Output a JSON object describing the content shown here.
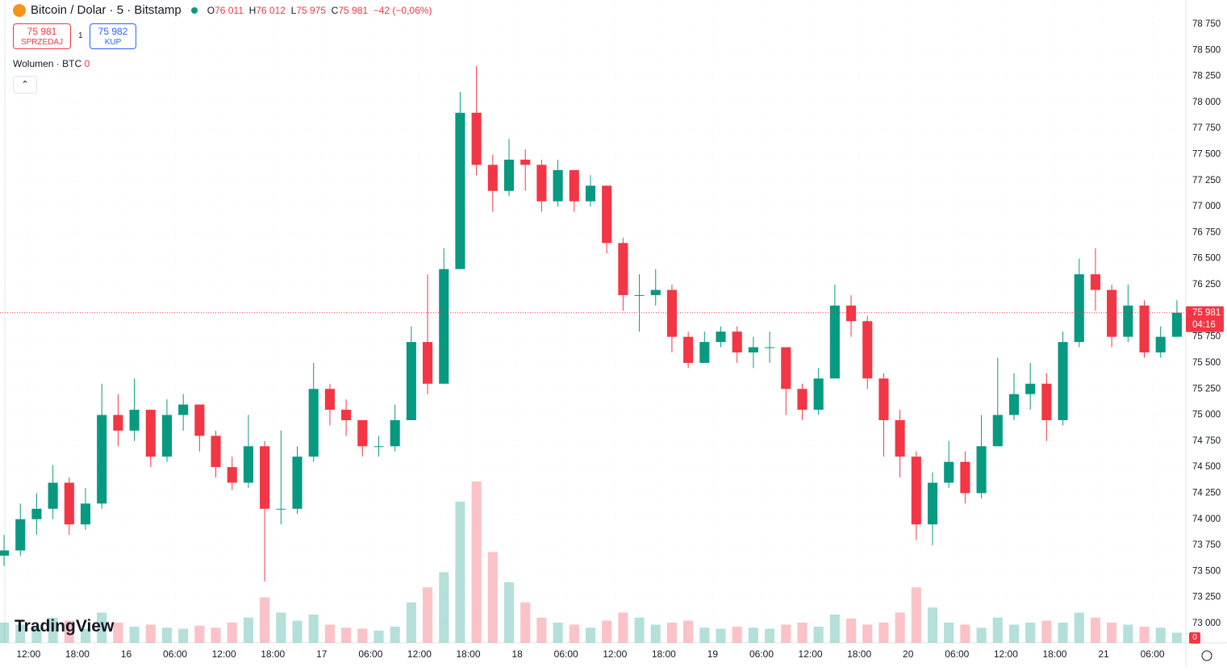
{
  "header": {
    "symbol": "Bitcoin / Dolar · 5 · Bitstamp",
    "ohlc": [
      {
        "label": "O",
        "value": "76 011"
      },
      {
        "label": "H",
        "value": "76 012"
      },
      {
        "label": "L",
        "value": "75 975"
      },
      {
        "label": "C",
        "value": "75 981"
      }
    ],
    "change": "−42 (−0,06%)",
    "sell": {
      "price": "75 981",
      "label": "SPRZEDAJ"
    },
    "spread": "1",
    "buy": {
      "price": "75 982",
      "label": "KUP"
    },
    "volume_label": "Wolumen · BTC",
    "volume_value": "0",
    "logo": "TradingView",
    "badge": "0"
  },
  "chart_data": {
    "type": "candlestick",
    "up_color": "#089981",
    "down_color": "#f23645",
    "x": [
      9,
      11,
      13,
      15,
      17,
      19,
      21,
      23,
      25,
      27,
      29,
      31,
      33,
      35,
      37,
      39,
      41,
      43,
      45,
      47,
      49,
      51,
      53,
      55,
      57,
      59,
      61,
      63,
      65,
      67,
      69,
      71,
      73,
      75,
      77,
      79,
      81,
      83,
      85,
      87,
      89,
      91,
      93,
      95,
      97,
      99,
      101,
      103,
      105,
      107,
      109,
      111,
      113,
      115,
      117,
      119,
      121,
      123,
      125,
      127,
      129,
      131,
      133,
      135,
      137,
      139,
      141,
      143,
      145,
      147,
      149,
      151,
      153
    ],
    "open": [
      73650,
      73700,
      74000,
      74100,
      74350,
      73950,
      74150,
      75000,
      74850,
      75050,
      74600,
      75000,
      75100,
      74800,
      74500,
      74350,
      74700,
      74100,
      74100,
      74600,
      75250,
      75050,
      74950,
      74700,
      74700,
      74950,
      75700,
      75300,
      76400,
      77900,
      77400,
      77150,
      77450,
      77400,
      77050,
      77350,
      77050,
      77200,
      76650,
      76150,
      76150,
      76200,
      75750,
      75500,
      75700,
      75800,
      75600,
      75650,
      75650,
      75250,
      75050,
      75350,
      76050,
      75900,
      75350,
      74950,
      74600,
      73950,
      74350,
      74550,
      74250,
      74700,
      75000,
      75200,
      75300,
      74950,
      75700,
      76350,
      76200,
      75750,
      76050,
      75600,
      75750
    ],
    "high": [
      73850,
      74150,
      74250,
      74520,
      74400,
      74300,
      75300,
      75200,
      75350,
      75050,
      75150,
      75200,
      75100,
      74850,
      74600,
      75000,
      74750,
      74850,
      74700,
      75500,
      75300,
      75150,
      74950,
      74800,
      75100,
      75850,
      76350,
      76600,
      78100,
      78350,
      77500,
      77650,
      77550,
      77450,
      77450,
      77350,
      77300,
      77200,
      76700,
      76350,
      76400,
      76250,
      75800,
      75800,
      75850,
      75850,
      75750,
      75800,
      75650,
      75300,
      75450,
      76250,
      76150,
      75950,
      75400,
      75050,
      74650,
      74450,
      74750,
      74650,
      75000,
      75550,
      75400,
      75500,
      75400,
      75800,
      76500,
      76600,
      76250,
      76250,
      76100,
      75850,
      76100
    ],
    "low": [
      73550,
      73650,
      73850,
      74000,
      73850,
      73900,
      74100,
      74700,
      74750,
      74500,
      74550,
      74850,
      74650,
      74400,
      74280,
      74300,
      73400,
      73950,
      74050,
      74550,
      74900,
      74800,
      74600,
      74600,
      74650,
      74950,
      75200,
      75300,
      76400,
      77300,
      76950,
      77100,
      77150,
      76950,
      77000,
      76950,
      77000,
      76550,
      76000,
      75800,
      76050,
      75600,
      75450,
      75550,
      75650,
      75500,
      75450,
      75500,
      75000,
      74950,
      75000,
      75400,
      75750,
      75250,
      74600,
      74400,
      73800,
      73750,
      74300,
      74150,
      74200,
      74700,
      74950,
      75050,
      74750,
      74900,
      75650,
      76000,
      75650,
      75700,
      75550,
      75550,
      75750
    ],
    "close": [
      73700,
      74000,
      74100,
      74350,
      73950,
      74150,
      75000,
      74850,
      75050,
      74600,
      75000,
      75100,
      74800,
      74500,
      74350,
      74700,
      74100,
      74100,
      74600,
      75250,
      75050,
      74950,
      74700,
      74700,
      74950,
      75700,
      75300,
      76400,
      77900,
      77400,
      77150,
      77450,
      77400,
      77050,
      77350,
      77050,
      77200,
      76650,
      76150,
      76150,
      76200,
      75750,
      75500,
      75700,
      75800,
      75600,
      75650,
      75650,
      75250,
      75050,
      75350,
      76050,
      75900,
      75350,
      74950,
      74600,
      73950,
      74350,
      74550,
      74250,
      74700,
      75000,
      75200,
      75300,
      74950,
      75700,
      76350,
      76200,
      75750,
      76050,
      75600,
      75750,
      75981
    ],
    "volume": [
      20,
      18,
      15,
      25,
      22,
      14,
      30,
      20,
      16,
      18,
      15,
      14,
      17,
      15,
      20,
      25,
      45,
      30,
      22,
      28,
      18,
      15,
      14,
      12,
      16,
      40,
      55,
      70,
      140,
      160,
      90,
      60,
      40,
      25,
      20,
      18,
      15,
      22,
      30,
      25,
      18,
      20,
      22,
      15,
      14,
      16,
      15,
      14,
      18,
      20,
      16,
      28,
      24,
      18,
      20,
      30,
      55,
      35,
      20,
      18,
      15,
      25,
      18,
      20,
      22,
      20,
      30,
      25,
      20,
      18,
      16,
      15,
      10
    ],
    "xlim": [
      8.5,
      154.1
    ],
    "ylim": [
      72814,
      78982
    ],
    "xticks": [
      {
        "value": 12,
        "label": "12:00"
      },
      {
        "value": 18,
        "label": "18:00"
      },
      {
        "value": 24,
        "label": "16"
      },
      {
        "value": 30,
        "label": "06:00"
      },
      {
        "value": 36,
        "label": "12:00"
      },
      {
        "value": 42,
        "label": "18:00"
      },
      {
        "value": 48,
        "label": "17"
      },
      {
        "value": 54,
        "label": "06:00"
      },
      {
        "value": 60,
        "label": "12:00"
      },
      {
        "value": 66,
        "label": "18:00"
      },
      {
        "value": 72,
        "label": "18"
      },
      {
        "value": 78,
        "label": "06:00"
      },
      {
        "value": 84,
        "label": "12:00"
      },
      {
        "value": 90,
        "label": "18:00"
      },
      {
        "value": 96,
        "label": "19"
      },
      {
        "value": 102,
        "label": "06:00"
      },
      {
        "value": 108,
        "label": "12:00"
      },
      {
        "value": 114,
        "label": "18:00"
      },
      {
        "value": 120,
        "label": "20"
      },
      {
        "value": 126,
        "label": "06:00"
      },
      {
        "value": 132,
        "label": "12:00"
      },
      {
        "value": 138,
        "label": "18:00"
      },
      {
        "value": 144,
        "label": "21"
      },
      {
        "value": 150,
        "label": "06:00"
      }
    ],
    "yticks": [
      {
        "value": 73000,
        "label": "73 000"
      },
      {
        "value": 73250,
        "label": "73 250"
      },
      {
        "value": 73500,
        "label": "73 500"
      },
      {
        "value": 73750,
        "label": "73 750"
      },
      {
        "value": 74000,
        "label": "74 000"
      },
      {
        "value": 74250,
        "label": "74 250"
      },
      {
        "value": 74500,
        "label": "74 500"
      },
      {
        "value": 74750,
        "label": "74 750"
      },
      {
        "value": 75000,
        "label": "75 000"
      },
      {
        "value": 75250,
        "label": "75 250"
      },
      {
        "value": 75500,
        "label": "75 500"
      },
      {
        "value": 75750,
        "label": "75 750"
      },
      {
        "value": 76000,
        "label": "76 000"
      },
      {
        "value": 76250,
        "label": "76 250"
      },
      {
        "value": 76500,
        "label": "76 500"
      },
      {
        "value": 76750,
        "label": "76 750"
      },
      {
        "value": 77000,
        "label": "77 000"
      },
      {
        "value": 77250,
        "label": "77 250"
      },
      {
        "value": 77500,
        "label": "77 500"
      },
      {
        "value": 77750,
        "label": "77 750"
      },
      {
        "value": 78000,
        "label": "78 000"
      },
      {
        "value": 78250,
        "label": "78 250"
      },
      {
        "value": 78500,
        "label": "78 500"
      },
      {
        "value": 78750,
        "label": "78 750"
      }
    ],
    "grid": true,
    "last_price": {
      "value": 75981,
      "label": "75 981"
    },
    "countdown": "04:16"
  }
}
